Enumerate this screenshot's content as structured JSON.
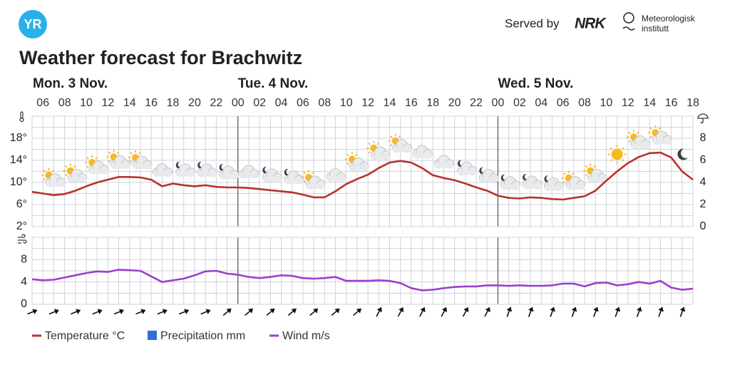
{
  "header": {
    "logo": "YR",
    "served_by": "Served by",
    "nrk": "NRK",
    "met": [
      "Meteorologisk",
      "institutt"
    ]
  },
  "title": "Weather forecast for Brachwitz",
  "chart_data": [
    {
      "type": "line",
      "days": [
        {
          "label": "Mon. 3 Nov.",
          "hours": [
            null,
            "06",
            null,
            "08",
            null,
            "10",
            null,
            "12",
            null,
            "14",
            null,
            "16",
            null,
            "18",
            null,
            "20",
            null,
            "22",
            null
          ]
        },
        {
          "label": "Tue. 4 Nov.",
          "hours": [
            "00",
            null,
            "02",
            null,
            "04",
            null,
            "06",
            null,
            "08",
            null,
            "10",
            null,
            "12",
            null,
            "14",
            null,
            "16",
            null,
            "18",
            null,
            "20",
            null,
            "22",
            null
          ]
        },
        {
          "label": "Wed. 5 Nov.",
          "hours": [
            "00",
            null,
            "02",
            null,
            "04",
            null,
            "06",
            null,
            "08",
            null,
            "10",
            null,
            "12",
            null,
            "14",
            null,
            "16",
            null,
            "18"
          ]
        }
      ],
      "ylim": [
        2,
        22
      ],
      "yticks": [
        {
          "value": 2,
          "label": "2°"
        },
        {
          "value": 6,
          "label": "6°"
        },
        {
          "value": 10,
          "label": "10°"
        },
        {
          "value": 14,
          "label": "14°"
        },
        {
          "value": 18,
          "label": "18°"
        }
      ],
      "y2lim": [
        0,
        10
      ],
      "y2ticks": [
        0,
        2,
        4,
        6,
        8
      ],
      "grid": true,
      "series": [
        {
          "name": "Temperature °C",
          "color": "#b8322a",
          "values": [
            8.3,
            8.0,
            7.7,
            7.9,
            8.5,
            9.3,
            10.0,
            10.5,
            11.0,
            11.0,
            10.9,
            10.5,
            9.3,
            9.8,
            9.5,
            9.3,
            9.5,
            9.2,
            9.1,
            9.1,
            9.0,
            8.8,
            8.6,
            8.4,
            8.2,
            7.8,
            7.3,
            7.3,
            8.4,
            9.7,
            10.6,
            11.4,
            12.6,
            13.6,
            13.9,
            13.6,
            12.6,
            11.3,
            10.8,
            10.4,
            9.8,
            9.1,
            8.5,
            7.6,
            7.2,
            7.1,
            7.3,
            7.2,
            7.0,
            6.9,
            7.2,
            7.5,
            8.5,
            10.3,
            12.0,
            13.5,
            14.6,
            15.3,
            15.4,
            14.5,
            12.0,
            10.5
          ]
        },
        {
          "name": "Precipitation mm",
          "color": "#2f6fd6",
          "axis": "y2",
          "values": [
            0,
            0,
            0,
            0,
            0,
            0,
            0,
            0,
            0,
            0,
            0,
            0,
            0,
            0,
            0,
            0,
            0,
            0,
            0,
            0,
            0,
            0,
            0,
            0,
            0,
            0,
            0,
            0,
            0,
            0,
            0,
            0,
            0,
            0,
            0,
            0,
            0,
            0,
            0,
            0,
            0,
            0,
            0,
            0,
            0,
            0,
            0,
            0,
            0,
            0,
            0,
            0,
            0,
            0,
            0,
            0,
            0,
            0,
            0,
            0,
            0,
            0
          ]
        }
      ]
    },
    {
      "type": "line",
      "ylim": [
        0,
        12
      ],
      "yticks": [
        0,
        4,
        8
      ],
      "grid": true,
      "series": [
        {
          "name": "Wind m/s",
          "color": "#9b3fd1",
          "values": [
            4.5,
            4.3,
            4.4,
            4.8,
            5.2,
            5.6,
            5.9,
            5.8,
            6.2,
            6.1,
            6.0,
            5.0,
            4.0,
            4.3,
            4.6,
            5.2,
            5.9,
            6.0,
            5.5,
            5.3,
            4.9,
            4.7,
            4.9,
            5.2,
            5.1,
            4.7,
            4.6,
            4.7,
            4.9,
            4.2,
            4.2,
            4.2,
            4.3,
            4.2,
            3.8,
            2.9,
            2.5,
            2.6,
            2.9,
            3.1,
            3.2,
            3.2,
            3.4,
            3.4,
            3.3,
            3.4,
            3.3,
            3.3,
            3.4,
            3.7,
            3.7,
            3.2,
            3.8,
            3.9,
            3.4,
            3.6,
            4.0,
            3.7,
            4.2,
            3.0,
            2.6,
            2.8
          ]
        }
      ]
    }
  ]
}
